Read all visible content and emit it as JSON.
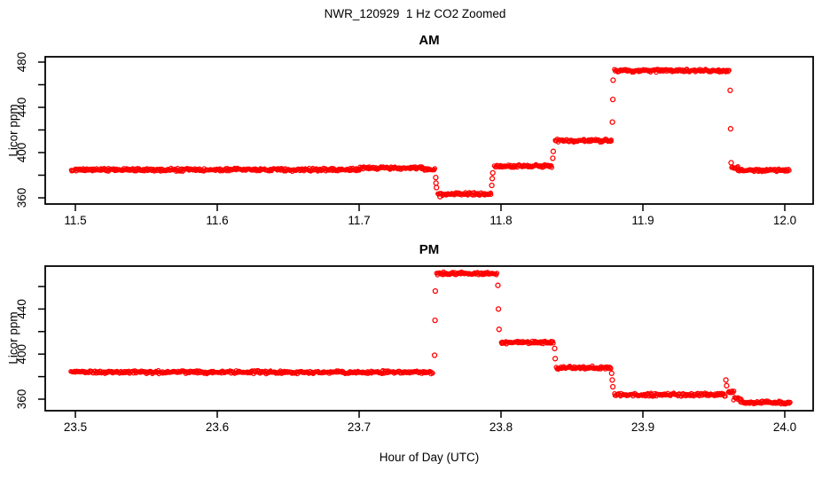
{
  "page": {
    "title": "NWR_120929  1 Hz CO2 Zoomed",
    "xlabel": "Hour of Day (UTC)"
  },
  "style": {
    "point_color": "#ff0000",
    "axis_color": "#000000",
    "background": "#ffffff"
  },
  "chart_data": [
    {
      "type": "scatter",
      "title": "AM",
      "ylabel": "Licor ppm",
      "marker": "open-circle",
      "color": "#ff0000",
      "grid": false,
      "legend": "none",
      "xlim": [
        11.478,
        12.02
      ],
      "ylim": [
        354.5,
        484.7
      ],
      "xticks": [
        11.5,
        11.6,
        11.7,
        11.8,
        11.9,
        12.0
      ],
      "yticks": [
        360,
        380,
        400,
        420,
        440,
        460,
        480
      ],
      "ytick_labels": [
        360,
        400,
        440,
        480
      ],
      "segments": [
        [
          11.497,
          11.7,
          384.8
        ],
        [
          11.7,
          11.745,
          386.3
        ],
        [
          11.745,
          11.7535,
          385.0
        ],
        [
          11.7555,
          11.793,
          363.5
        ],
        [
          11.7955,
          11.836,
          388.0
        ],
        [
          11.838,
          11.878,
          410.5
        ],
        [
          11.88,
          11.961,
          472.5
        ],
        [
          11.9625,
          11.967,
          386.8
        ],
        [
          11.967,
          12.003,
          384.5
        ]
      ],
      "transition_points": [
        [
          11.754,
          378
        ],
        [
          11.7542,
          373
        ],
        [
          11.7545,
          369
        ],
        [
          11.757,
          361.0
        ],
        [
          11.7935,
          371
        ],
        [
          11.7938,
          377
        ],
        [
          11.7942,
          382
        ],
        [
          11.8365,
          395
        ],
        [
          11.8368,
          401
        ],
        [
          11.8785,
          427
        ],
        [
          11.8788,
          447
        ],
        [
          11.879,
          464
        ],
        [
          11.9615,
          455
        ],
        [
          11.9618,
          421
        ],
        [
          11.9622,
          391
        ]
      ]
    },
    {
      "type": "scatter",
      "title": "PM",
      "ylabel": "Licor ppm",
      "marker": "open-circle",
      "color": "#ff0000",
      "grid": false,
      "legend": "none",
      "xlim": [
        23.478,
        24.02
      ],
      "ylim": [
        349.8,
        478.1
      ],
      "xticks": [
        23.5,
        23.6,
        23.7,
        23.8,
        23.9,
        24.0
      ],
      "yticks": [
        360,
        380,
        400,
        420,
        440,
        460
      ],
      "ytick_labels": [
        360,
        400,
        440
      ],
      "segments": [
        [
          23.497,
          23.752,
          384.0
        ],
        [
          23.7545,
          23.797,
          471.5
        ],
        [
          23.8,
          23.837,
          410.5
        ],
        [
          23.839,
          23.8775,
          388.0
        ],
        [
          23.88,
          23.958,
          364.0
        ],
        [
          23.96,
          23.964,
          366.5
        ],
        [
          23.964,
          23.969,
          360.5
        ],
        [
          23.969,
          24.004,
          357.0
        ]
      ],
      "transition_points": [
        [
          23.7532,
          399
        ],
        [
          23.7535,
          430
        ],
        [
          23.7537,
          456
        ],
        [
          23.7978,
          461
        ],
        [
          23.7982,
          440
        ],
        [
          23.7986,
          422
        ],
        [
          23.8378,
          405
        ],
        [
          23.8382,
          396
        ],
        [
          23.878,
          383
        ],
        [
          23.8784,
          377
        ],
        [
          23.8788,
          371
        ],
        [
          23.9585,
          377
        ],
        [
          23.959,
          372
        ]
      ]
    }
  ]
}
